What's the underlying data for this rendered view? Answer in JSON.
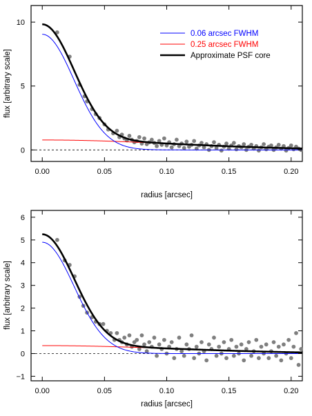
{
  "chart_data": [
    {
      "type": "scatter",
      "xlabel": "radius [arcsec]",
      "ylabel": "flux [arbitrary scale]",
      "xlim": [
        -0.009,
        0.209
      ],
      "ylim": [
        -0.9,
        11.3
      ],
      "x_ticks": [
        0.0,
        0.05,
        0.1,
        0.15,
        0.2
      ],
      "x_tick_labels": [
        "0.00",
        "0.05",
        "0.10",
        "0.15",
        "0.20"
      ],
      "y_ticks": [
        0,
        5,
        10
      ],
      "y_tick_labels": [
        "0",
        "5",
        "10"
      ],
      "zero_line": "dashed",
      "legend": {
        "placement": "top-right",
        "entries": [
          {
            "label": "0.06 arcsec FWHM",
            "color": "#0000ff"
          },
          {
            "label": "0.25 arcsec FWHM",
            "color": "#ff0000"
          },
          {
            "label": "Approximate PSF core",
            "color": "#000000"
          }
        ]
      },
      "curves": {
        "narrow_gaussian": {
          "peak": 9.05,
          "fwhm": 0.06,
          "color": "#0000ff"
        },
        "wide_gaussian": {
          "peak": 0.78,
          "fwhm": 0.25,
          "color": "#ff0000"
        },
        "approximate_psf_core": {
          "components": "sum of narrow and wide",
          "color": "#000000"
        }
      },
      "scatter": {
        "color": "#7f7f7f",
        "points": [
          [
            0.012,
            9.2
          ],
          [
            0.022,
            7.3
          ],
          [
            0.03,
            5.1
          ],
          [
            0.034,
            4.2
          ],
          [
            0.036,
            3.8
          ],
          [
            0.04,
            3.2
          ],
          [
            0.043,
            2.8
          ],
          [
            0.046,
            2.5
          ],
          [
            0.05,
            2.0
          ],
          [
            0.053,
            1.6
          ],
          [
            0.057,
            1.3
          ],
          [
            0.06,
            1.5
          ],
          [
            0.062,
            1.0
          ],
          [
            0.064,
            1.2
          ],
          [
            0.066,
            0.9
          ],
          [
            0.068,
            0.75
          ],
          [
            0.07,
            1.1
          ],
          [
            0.072,
            0.8
          ],
          [
            0.074,
            0.6
          ],
          [
            0.076,
            0.7
          ],
          [
            0.078,
            1.0
          ],
          [
            0.08,
            0.5
          ],
          [
            0.082,
            0.9
          ],
          [
            0.084,
            0.45
          ],
          [
            0.086,
            0.6
          ],
          [
            0.088,
            0.8
          ],
          [
            0.09,
            0.55
          ],
          [
            0.092,
            0.3
          ],
          [
            0.094,
            0.7
          ],
          [
            0.096,
            0.4
          ],
          [
            0.098,
            0.9
          ],
          [
            0.1,
            0.35
          ],
          [
            0.102,
            0.6
          ],
          [
            0.104,
            0.2
          ],
          [
            0.106,
            0.45
          ],
          [
            0.108,
            0.8
          ],
          [
            0.11,
            0.3
          ],
          [
            0.112,
            0.5
          ],
          [
            0.114,
            0.15
          ],
          [
            0.116,
            0.65
          ],
          [
            0.118,
            0.25
          ],
          [
            0.12,
            0.4
          ],
          [
            0.122,
            0.7
          ],
          [
            0.124,
            0.1
          ],
          [
            0.126,
            0.35
          ],
          [
            0.128,
            0.55
          ],
          [
            0.13,
            0.2
          ],
          [
            0.132,
            0.45
          ],
          [
            0.134,
            0.0
          ],
          [
            0.136,
            0.3
          ],
          [
            0.138,
            0.6
          ],
          [
            0.14,
            0.15
          ],
          [
            0.142,
            0.4
          ],
          [
            0.144,
            -0.05
          ],
          [
            0.146,
            0.25
          ],
          [
            0.148,
            0.5
          ],
          [
            0.15,
            0.1
          ],
          [
            0.152,
            0.35
          ],
          [
            0.154,
            0.55
          ],
          [
            0.156,
            0.05
          ],
          [
            0.158,
            0.3
          ],
          [
            0.16,
            0.2
          ],
          [
            0.162,
            0.45
          ],
          [
            0.164,
            0.0
          ],
          [
            0.166,
            0.25
          ],
          [
            0.168,
            0.4
          ],
          [
            0.17,
            0.1
          ],
          [
            0.172,
            0.3
          ],
          [
            0.174,
            -0.05
          ],
          [
            0.176,
            0.2
          ],
          [
            0.178,
            0.45
          ],
          [
            0.18,
            0.05
          ],
          [
            0.182,
            0.25
          ],
          [
            0.184,
            0.35
          ],
          [
            0.186,
            0.0
          ],
          [
            0.188,
            0.2
          ],
          [
            0.19,
            0.4
          ],
          [
            0.192,
            0.1
          ],
          [
            0.194,
            0.3
          ],
          [
            0.196,
            -0.05
          ],
          [
            0.198,
            0.15
          ],
          [
            0.2,
            0.35
          ],
          [
            0.202,
            0.05
          ],
          [
            0.204,
            0.25
          ],
          [
            0.206,
            0.1
          ],
          [
            0.208,
            0.0
          ]
        ]
      }
    },
    {
      "type": "scatter",
      "xlabel": "radius [arcsec]",
      "ylabel": "flux [arbitrary scale]",
      "xlim": [
        -0.009,
        0.209
      ],
      "ylim": [
        -1.2,
        6.3
      ],
      "x_ticks": [
        0.0,
        0.05,
        0.1,
        0.15,
        0.2
      ],
      "x_tick_labels": [
        "0.00",
        "0.05",
        "0.10",
        "0.15",
        "0.20"
      ],
      "y_ticks": [
        -1,
        0,
        1,
        2,
        3,
        4,
        5,
        6
      ],
      "y_tick_labels": [
        "−1",
        "0",
        "1",
        "2",
        "3",
        "4",
        "5",
        "6"
      ],
      "zero_line": "dashed",
      "curves": {
        "narrow_gaussian": {
          "peak": 4.9,
          "fwhm": 0.06,
          "color": "#0000ff"
        },
        "wide_gaussian": {
          "peak": 0.35,
          "fwhm": 0.25,
          "color": "#ff0000"
        },
        "approximate_psf_core": {
          "components": "sum of narrow and wide",
          "color": "#000000"
        }
      },
      "scatter": {
        "color": "#7f7f7f",
        "points": [
          [
            0.012,
            5.0
          ],
          [
            0.018,
            4.1
          ],
          [
            0.022,
            3.9
          ],
          [
            0.026,
            3.4
          ],
          [
            0.03,
            2.5
          ],
          [
            0.033,
            2.1
          ],
          [
            0.036,
            1.8
          ],
          [
            0.04,
            1.6
          ],
          [
            0.043,
            1.4
          ],
          [
            0.046,
            1.3
          ],
          [
            0.049,
            1.3
          ],
          [
            0.052,
            1.0
          ],
          [
            0.055,
            0.9
          ],
          [
            0.058,
            0.6
          ],
          [
            0.06,
            0.9
          ],
          [
            0.062,
            0.6
          ],
          [
            0.064,
            0.5
          ],
          [
            0.066,
            0.7
          ],
          [
            0.068,
            0.4
          ],
          [
            0.07,
            0.8
          ],
          [
            0.072,
            0.3
          ],
          [
            0.074,
            0.5
          ],
          [
            0.076,
            0.6
          ],
          [
            0.078,
            0.2
          ],
          [
            0.08,
            0.8
          ],
          [
            0.082,
            0.4
          ],
          [
            0.084,
            0.1
          ],
          [
            0.086,
            0.5
          ],
          [
            0.088,
            0.3
          ],
          [
            0.09,
            0.7
          ],
          [
            0.092,
            -0.1
          ],
          [
            0.094,
            0.4
          ],
          [
            0.096,
            0.2
          ],
          [
            0.098,
            0.6
          ],
          [
            0.1,
            0.0
          ],
          [
            0.102,
            0.3
          ],
          [
            0.104,
            0.5
          ],
          [
            0.106,
            -0.2
          ],
          [
            0.108,
            0.2
          ],
          [
            0.11,
            0.7
          ],
          [
            0.112,
            0.1
          ],
          [
            0.114,
            -0.1
          ],
          [
            0.116,
            0.4
          ],
          [
            0.118,
            0.2
          ],
          [
            0.12,
            0.8
          ],
          [
            0.122,
            -0.2
          ],
          [
            0.124,
            0.3
          ],
          [
            0.126,
            0.0
          ],
          [
            0.128,
            0.5
          ],
          [
            0.13,
            0.1
          ],
          [
            0.132,
            -0.3
          ],
          [
            0.134,
            0.4
          ],
          [
            0.136,
            0.2
          ],
          [
            0.138,
            0.7
          ],
          [
            0.14,
            -0.1
          ],
          [
            0.142,
            0.3
          ],
          [
            0.144,
            0.0
          ],
          [
            0.146,
            0.5
          ],
          [
            0.148,
            -0.2
          ],
          [
            0.15,
            0.2
          ],
          [
            0.152,
            0.6
          ],
          [
            0.154,
            -0.1
          ],
          [
            0.156,
            0.3
          ],
          [
            0.158,
            0.0
          ],
          [
            0.16,
            0.4
          ],
          [
            0.162,
            -0.3
          ],
          [
            0.164,
            0.2
          ],
          [
            0.166,
            0.5
          ],
          [
            0.168,
            -0.1
          ],
          [
            0.17,
            0.1
          ],
          [
            0.172,
            0.6
          ],
          [
            0.174,
            -0.2
          ],
          [
            0.176,
            0.3
          ],
          [
            0.178,
            0.0
          ],
          [
            0.18,
            0.4
          ],
          [
            0.182,
            -0.2
          ],
          [
            0.184,
            0.1
          ],
          [
            0.186,
            0.5
          ],
          [
            0.188,
            -0.1
          ],
          [
            0.19,
            0.3
          ],
          [
            0.192,
            -0.3
          ],
          [
            0.194,
            0.4
          ],
          [
            0.196,
            0.0
          ],
          [
            0.198,
            0.6
          ],
          [
            0.2,
            -0.2
          ],
          [
            0.202,
            0.3
          ],
          [
            0.204,
            0.9
          ],
          [
            0.206,
            -0.5
          ],
          [
            0.208,
            0.2
          ]
        ]
      }
    }
  ]
}
